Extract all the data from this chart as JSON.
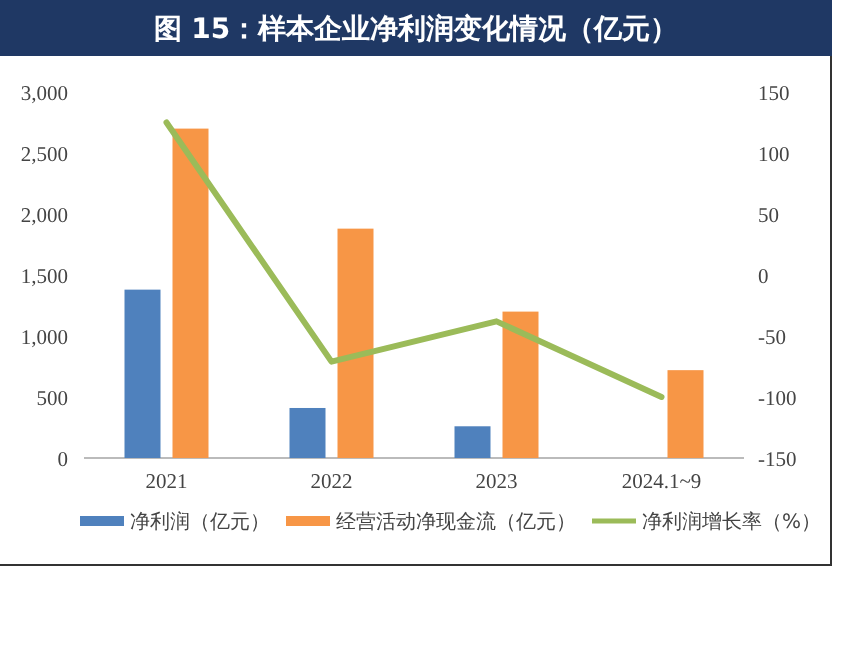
{
  "chart_data": {
    "type": "bar",
    "title": "图 15：样本企业净利润变化情况（亿元）",
    "categories": [
      "2021",
      "2022",
      "2023",
      "2024.1~9"
    ],
    "series": [
      {
        "name": "净利润（亿元）",
        "color": "#4f81bd",
        "values": [
          1380,
          410,
          260,
          null
        ]
      },
      {
        "name": "经营活动净现金流（亿元）",
        "color": "#f79646",
        "values": [
          2700,
          1880,
          1200,
          720
        ]
      },
      {
        "name": "净利润增长率（%）",
        "type": "line",
        "axis": "y2",
        "color": "#9bbb59",
        "values": [
          125,
          -71,
          -38,
          -100
        ]
      }
    ],
    "ylim": [
      0,
      3000
    ],
    "yticks": [
      0,
      {
        "value": 500,
        "label": "500"
      },
      {
        "value": 1000,
        "label": "1,000"
      },
      {
        "value": 1500,
        "label": "1,500"
      },
      {
        "value": 2000,
        "label": "2,000"
      },
      {
        "value": 2500,
        "label": "2,500"
      },
      {
        "value": 3000,
        "label": "3,000"
      }
    ],
    "y2lim": [
      -150,
      150
    ],
    "y2ticks": [
      -150,
      -100,
      -50,
      0,
      50,
      100,
      150
    ],
    "legend": "bottom",
    "grid": false
  }
}
